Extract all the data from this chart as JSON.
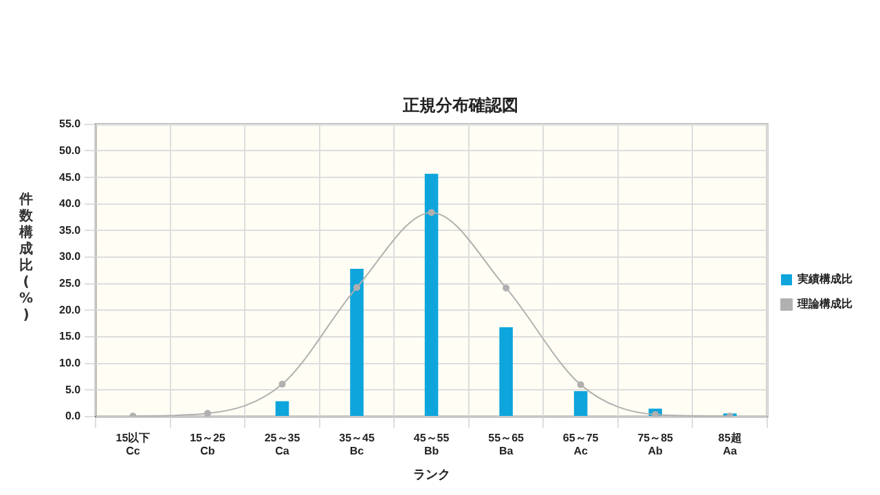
{
  "chart_data": {
    "type": "bar",
    "title": "正規分布確認図",
    "xlabel": "ランク",
    "ylabel": "件数構成比(%)",
    "categories": [
      "15以下\nCc",
      "15～25\nCb",
      "25～35\nCa",
      "35～45\nBc",
      "45～55\nBb",
      "55～65\nBa",
      "65～75\nAc",
      "75～85\nAb",
      "85超\nAa"
    ],
    "series": [
      {
        "name": "実績構成比",
        "color": "#0ea5dc",
        "values": [
          0,
          0,
          2.9,
          27.8,
          45.7,
          16.8,
          4.8,
          1.5,
          0.6
        ]
      },
      {
        "name": "理論構成比",
        "type": "line",
        "color": "#b0b0b0",
        "values": [
          0.1,
          0.6,
          6.1,
          24.3,
          38.4,
          24.2,
          6.0,
          0.4,
          0.1
        ]
      }
    ],
    "ylim": [
      0,
      55
    ],
    "yticks": [
      {
        "value": 0,
        "label": "0.0"
      },
      {
        "value": 5,
        "label": "5.0"
      },
      {
        "value": 10,
        "label": "10.0"
      },
      {
        "value": 15,
        "label": "15.0"
      },
      {
        "value": 20,
        "label": "20.0"
      },
      {
        "value": 25,
        "label": "25.0"
      },
      {
        "value": 30,
        "label": "30.0"
      },
      {
        "value": 35,
        "label": "35.0"
      },
      {
        "value": 40,
        "label": "40.0"
      },
      {
        "value": 45,
        "label": "45.0"
      },
      {
        "value": 50,
        "label": "50.0"
      },
      {
        "value": 55,
        "label": "55.0"
      }
    ],
    "grid": true,
    "legend": "right",
    "marker": "circle",
    "line_style": "solid"
  }
}
